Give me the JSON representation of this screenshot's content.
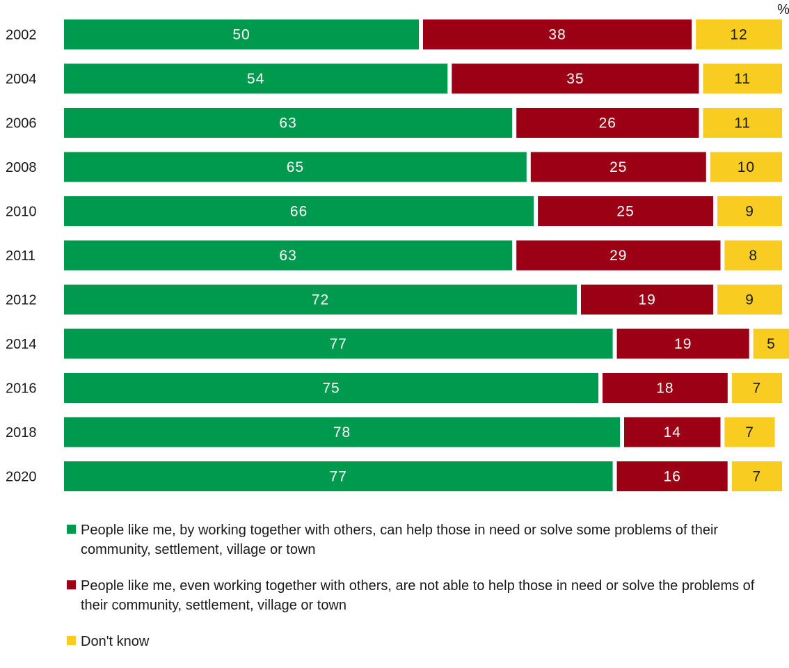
{
  "chart_data": {
    "type": "bar",
    "orientation": "horizontal",
    "stacked": true,
    "unit_label": "%",
    "categories": [
      "2002",
      "2004",
      "2006",
      "2008",
      "2010",
      "2011",
      "2012",
      "2014",
      "2016",
      "2018",
      "2020"
    ],
    "series": [
      {
        "name": "People like me, by working together with others, can help those in need or solve some problems of their community, settlement, village or town",
        "color": "#009a4e",
        "values": [
          50,
          54,
          63,
          65,
          66,
          63,
          72,
          77,
          75,
          78,
          77
        ]
      },
      {
        "name": "People like me, even working together with others, are not able to help those in need or solve the problems of their community, settlement, village or town",
        "color": "#9b0014",
        "values": [
          38,
          35,
          26,
          25,
          25,
          29,
          19,
          19,
          18,
          14,
          16
        ]
      },
      {
        "name": "Don't know",
        "color": "#f8cc21",
        "values": [
          12,
          11,
          11,
          10,
          9,
          8,
          9,
          5,
          7,
          7,
          7
        ]
      }
    ],
    "xlim": [
      0,
      100
    ],
    "grid": false,
    "legend_position": "bottom"
  }
}
